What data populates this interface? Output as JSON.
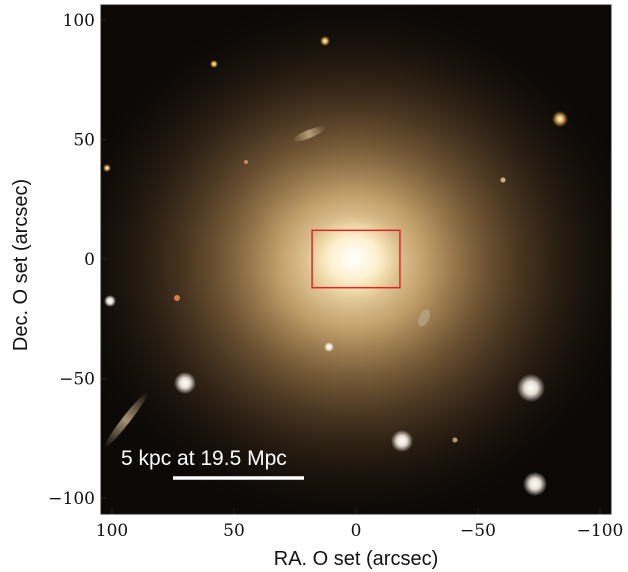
{
  "figure": {
    "x_label": "RA. O set (arcsec)",
    "y_label": "Dec. O set (arcsec)",
    "scale_bar_label": "5 kpc at 19.5  Mpc",
    "x_ticks": [
      "100",
      "50",
      "0",
      "−50",
      "−100"
    ],
    "y_ticks": [
      "100",
      "50",
      "0",
      "−50",
      "−100"
    ],
    "x_range": [
      100,
      -100
    ],
    "y_range": [
      -100,
      100
    ],
    "highlight_box": {
      "ra": [
        18,
        -18
      ],
      "dec": [
        -12,
        12
      ],
      "color": "#e0262c"
    },
    "colors": {
      "sky": "#0b0806",
      "galaxy_core": "#fff6dc",
      "galaxy_halo": "#b38e5c"
    }
  }
}
